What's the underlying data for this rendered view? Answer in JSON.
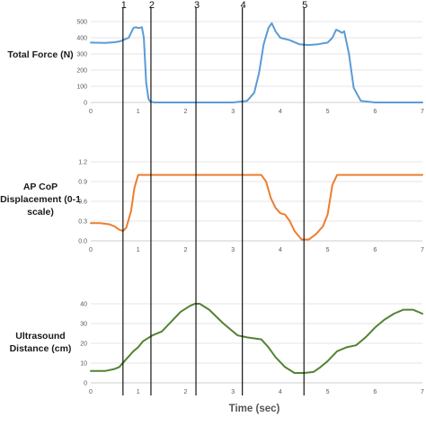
{
  "chart_data": [
    {
      "type": "line",
      "ylabel": "Total Force (N)",
      "xlim": [
        0,
        7
      ],
      "ylim": [
        0,
        500
      ],
      "x_ticks": [
        0,
        1,
        2,
        3,
        4,
        5,
        6,
        7
      ],
      "y_ticks": [
        0,
        100,
        200,
        300,
        400,
        500
      ],
      "grid": true,
      "series": [
        {
          "color": "#5b9bd5",
          "x": [
            0,
            0.3,
            0.5,
            0.62,
            0.8,
            0.9,
            0.95,
            1.0,
            1.08,
            1.12,
            1.17,
            1.22,
            1.26,
            1.35,
            2.0,
            3.0,
            3.3,
            3.45,
            3.55,
            3.65,
            3.75,
            3.82,
            3.9,
            4.0,
            4.2,
            4.4,
            4.6,
            4.8,
            5.0,
            5.1,
            5.18,
            5.25,
            5.3,
            5.35,
            5.45,
            5.55,
            5.7,
            6.0,
            7.0
          ],
          "values": [
            370,
            368,
            372,
            378,
            400,
            460,
            465,
            460,
            465,
            400,
            120,
            20,
            5,
            0,
            0,
            0,
            10,
            60,
            180,
            360,
            460,
            490,
            440,
            400,
            385,
            360,
            355,
            360,
            370,
            400,
            450,
            440,
            430,
            440,
            300,
            90,
            10,
            0,
            0
          ]
        }
      ]
    },
    {
      "type": "line",
      "ylabel": "AP CoP Displacement (0-1 scale)",
      "xlim": [
        0,
        7
      ],
      "ylim": [
        0,
        1.2
      ],
      "x_ticks": [
        0,
        1,
        2,
        3,
        4,
        5,
        6,
        7
      ],
      "y_ticks": [
        0.0,
        0.3,
        0.6,
        0.9,
        1.2
      ],
      "grid": true,
      "series": [
        {
          "color": "#ed7d31",
          "x": [
            0,
            0.2,
            0.4,
            0.5,
            0.6,
            0.68,
            0.75,
            0.85,
            0.92,
            1.0,
            1.1,
            2.0,
            3.0,
            3.6,
            3.7,
            3.8,
            3.9,
            4.0,
            4.1,
            4.2,
            4.3,
            4.45,
            4.6,
            4.75,
            4.9,
            5.0,
            5.1,
            5.2,
            5.3,
            5.5,
            6.0,
            7.0
          ],
          "values": [
            0.27,
            0.27,
            0.25,
            0.22,
            0.17,
            0.15,
            0.2,
            0.45,
            0.8,
            1.0,
            1.0,
            1.0,
            1.0,
            1.0,
            0.9,
            0.65,
            0.5,
            0.42,
            0.4,
            0.3,
            0.15,
            0.02,
            0.02,
            0.1,
            0.22,
            0.4,
            0.85,
            1.0,
            1.0,
            1.0,
            1.0,
            1.0
          ]
        }
      ]
    },
    {
      "type": "line",
      "ylabel": "Ultrasound Distance (cm)",
      "xlabel": "Time (sec)",
      "xlim": [
        0,
        7
      ],
      "ylim": [
        0,
        40
      ],
      "x_ticks": [
        0,
        1,
        2,
        3,
        4,
        5,
        6,
        7
      ],
      "y_ticks": [
        0,
        10,
        20,
        30,
        40
      ],
      "grid": true,
      "series": [
        {
          "color": "#548235",
          "x": [
            0,
            0.3,
            0.5,
            0.6,
            0.75,
            0.9,
            1.0,
            1.1,
            1.3,
            1.5,
            1.7,
            1.9,
            2.1,
            2.2,
            2.3,
            2.5,
            2.8,
            3.1,
            3.3,
            3.6,
            3.75,
            3.9,
            4.1,
            4.3,
            4.5,
            4.7,
            4.85,
            5.0,
            5.2,
            5.4,
            5.6,
            5.8,
            6.0,
            6.2,
            6.4,
            6.6,
            6.8,
            7.0
          ],
          "values": [
            6,
            6,
            7,
            8,
            12,
            16,
            18,
            21,
            24,
            26,
            31,
            36,
            39,
            40,
            40,
            37,
            30,
            24,
            23,
            22,
            18,
            13,
            8,
            5,
            5,
            5.5,
            8,
            11,
            16,
            18,
            19,
            23,
            28,
            32,
            35,
            37,
            37,
            35
          ]
        }
      ]
    }
  ],
  "event_markers": [
    {
      "label": "1",
      "x": 0.68
    },
    {
      "label": "2",
      "x": 1.27
    },
    {
      "label": "3",
      "x": 2.22
    },
    {
      "label": "4",
      "x": 3.2
    },
    {
      "label": "5",
      "x": 4.5
    }
  ],
  "labels": {
    "panel1": "Total Force (N)",
    "panel2": "AP CoP Displacement (0-1 scale)",
    "panel3": "Ultrasound Distance (cm)",
    "xtitle": "Time (sec)"
  }
}
